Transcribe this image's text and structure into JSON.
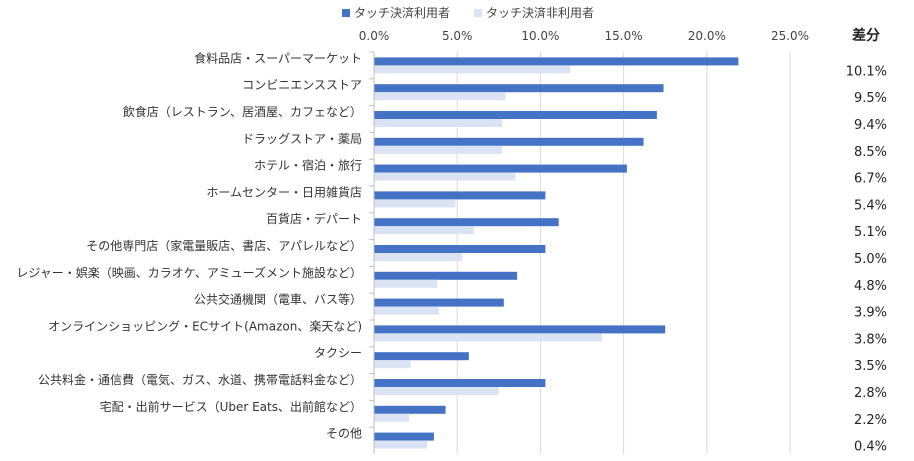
{
  "chart_data": {
    "type": "bar",
    "orientation": "horizontal",
    "categories": [
      "食料品店・スーパーマーケット",
      "コンビニエンスストア",
      "飲食店（レストラン、居酒屋、カフェなど）",
      "ドラッグストア・薬局",
      "ホテル・宿泊・旅行",
      "ホームセンター・日用雑貨店",
      "百貨店・デパート",
      "その他専門店（家電量販店、書店、アパレルなど）",
      "レジャー・娯楽（映画、カラオケ、アミューズメント施設など）",
      "公共交通機関（電車、バス等）",
      "オンラインショッピング・ECサイト(Amazon、楽天など)",
      "タクシー",
      "公共料金・通信費（電気、ガス、水道、携帯電話料金など）",
      "宅配・出前サービス（Uber Eats、出前館など）",
      "その他"
    ],
    "series": [
      {
        "name": "タッチ決済利用者",
        "color": "#4472C4",
        "values": [
          21.9,
          17.4,
          17.0,
          16.2,
          15.2,
          10.3,
          11.1,
          10.3,
          8.6,
          7.8,
          17.5,
          5.7,
          10.3,
          4.3,
          3.6
        ]
      },
      {
        "name": "タッチ決済非利用者",
        "color": "#DAE3F3",
        "values": [
          11.8,
          7.9,
          7.7,
          7.7,
          8.5,
          4.9,
          6.0,
          5.3,
          3.8,
          3.9,
          13.7,
          2.2,
          7.5,
          2.1,
          3.2
        ]
      }
    ],
    "xlim": [
      0,
      25
    ],
    "xticks": [
      "0.0%",
      "5.0%",
      "10.0%",
      "15.0%",
      "20.0%",
      "25.0%"
    ],
    "x_axis_position": "top",
    "gridlines": true,
    "legend_position": "top",
    "diff_title": "差分",
    "diff_labels": [
      "10.1%",
      "9.5%",
      "9.4%",
      "8.5%",
      "6.7%",
      "5.4%",
      "5.1%",
      "5.0%",
      "4.8%",
      "3.9%",
      "3.8%",
      "3.5%",
      "2.8%",
      "2.2%",
      "0.4%"
    ]
  }
}
